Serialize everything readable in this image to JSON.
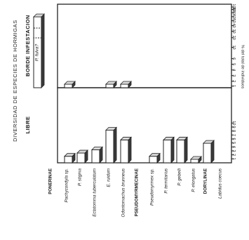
{
  "chart_data": {
    "type": "bar",
    "title": "DIVERSIDAD DE ESPECIES DE HORMIGAS",
    "xlabel": "",
    "ylabel": "% del total de individuos",
    "categories": [
      "PONERINAE",
      "Pachycondyla sp.",
      "P. stigma",
      "Ectatomma tuberculatum",
      "E. ruidum",
      "Odontomachus brunneus",
      "PSEUDOMYRMECINAE",
      "Pseudomyrmex sp.",
      "P. termitarius",
      "P. gebelli",
      "P. elongatus",
      "DORYLINAE",
      "Labidus coecus"
    ],
    "panels": [
      {
        "name": "BORDE INFESTACION",
        "ylim": [
          0,
          100
        ],
        "yticks": [
          "1",
          "2",
          "3",
          "4",
          "5",
          "6",
          "10",
          "20",
          "30",
          "40",
          "50",
          "60",
          "80",
          "90",
          "100"
        ],
        "annotation": "P. fulva?",
        "values": [
          null,
          1,
          null,
          null,
          1,
          1,
          null,
          null,
          null,
          null,
          null,
          null,
          null
        ]
      },
      {
        "name": "LIBRE",
        "ylim": [
          0,
          10
        ],
        "yticks": [
          "1",
          "2",
          "3",
          "4",
          "5",
          "6",
          "7",
          "8",
          "9",
          "10"
        ],
        "values": [
          null,
          1,
          1.5,
          2,
          5,
          3.5,
          null,
          1,
          3.5,
          3.5,
          0.5,
          null,
          3
        ]
      }
    ]
  }
}
